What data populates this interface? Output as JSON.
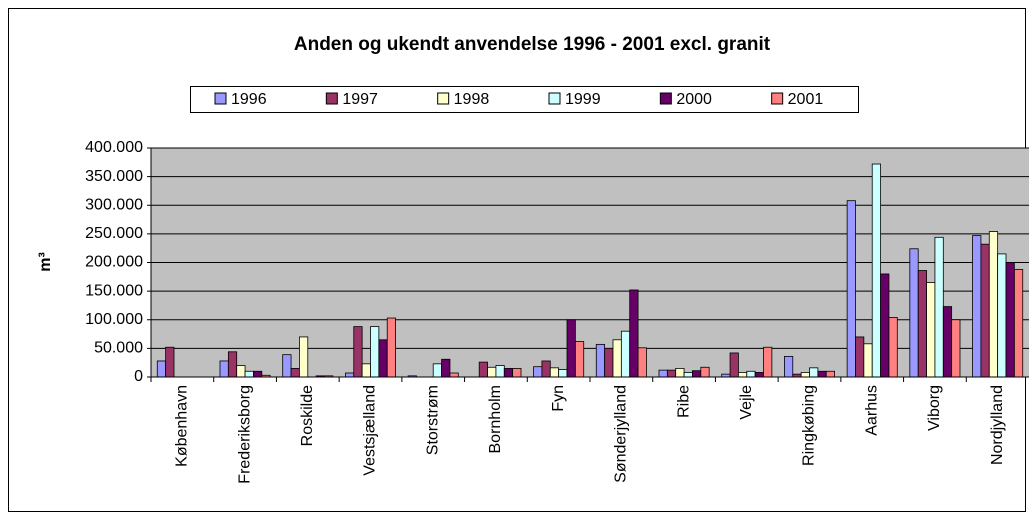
{
  "chart_data": {
    "type": "bar",
    "title": "Anden og ukendt anvendelse 1996 - 2001 excl. granit",
    "ylabel": "m³",
    "categories": [
      "København",
      "Frederiksborg",
      "Roskilde",
      "Vestsjælland",
      "Storstrøm",
      "Bornholm",
      "Fyn",
      "Sønderjylland",
      "Ribe",
      "Vejle",
      "Ringkøbing",
      "Aarhus",
      "Viborg",
      "Nordjylland"
    ],
    "series": [
      {
        "name": "1996",
        "color": "#9999ff",
        "values": [
          28000,
          28000,
          39000,
          7000,
          2000,
          0,
          18000,
          57000,
          12000,
          5000,
          36000,
          308000,
          224000,
          247000
        ]
      },
      {
        "name": "1997",
        "color": "#993366",
        "values": [
          52000,
          44000,
          15000,
          88000,
          0,
          26000,
          28000,
          50000,
          12000,
          42000,
          5000,
          70000,
          186000,
          232000
        ]
      },
      {
        "name": "1998",
        "color": "#ffffcc",
        "values": [
          0,
          20000,
          70000,
          23000,
          0,
          17000,
          16000,
          65000,
          15000,
          8000,
          8000,
          58000,
          165000,
          254000
        ]
      },
      {
        "name": "1999",
        "color": "#ccffff",
        "values": [
          0,
          10000,
          0,
          88000,
          23000,
          20000,
          13000,
          80000,
          8000,
          10000,
          16000,
          372000,
          244000,
          215000
        ]
      },
      {
        "name": "2000",
        "color": "#660066",
        "values": [
          0,
          10000,
          2000,
          65000,
          31000,
          15000,
          100000,
          152000,
          11000,
          8000,
          10000,
          180000,
          123000,
          200000
        ]
      },
      {
        "name": "2001",
        "color": "#ff8080",
        "values": [
          0,
          3000,
          2000,
          103000,
          7000,
          15000,
          62000,
          51000,
          17000,
          52000,
          10000,
          104000,
          100000,
          188000
        ]
      }
    ],
    "ylim": [
      0,
      400000
    ],
    "yticks": [
      0,
      {
        "value": 50000,
        "label": "50.000"
      },
      {
        "value": 100000,
        "label": "100.000"
      },
      {
        "value": 150000,
        "label": "150.000"
      },
      {
        "value": 200000,
        "label": "200.000"
      },
      {
        "value": 250000,
        "label": "250.000"
      },
      {
        "value": 300000,
        "label": "300.000"
      },
      {
        "value": 350000,
        "label": "350.000"
      },
      {
        "value": 400000,
        "label": "400.000"
      }
    ],
    "grid": true,
    "legend": "top"
  }
}
